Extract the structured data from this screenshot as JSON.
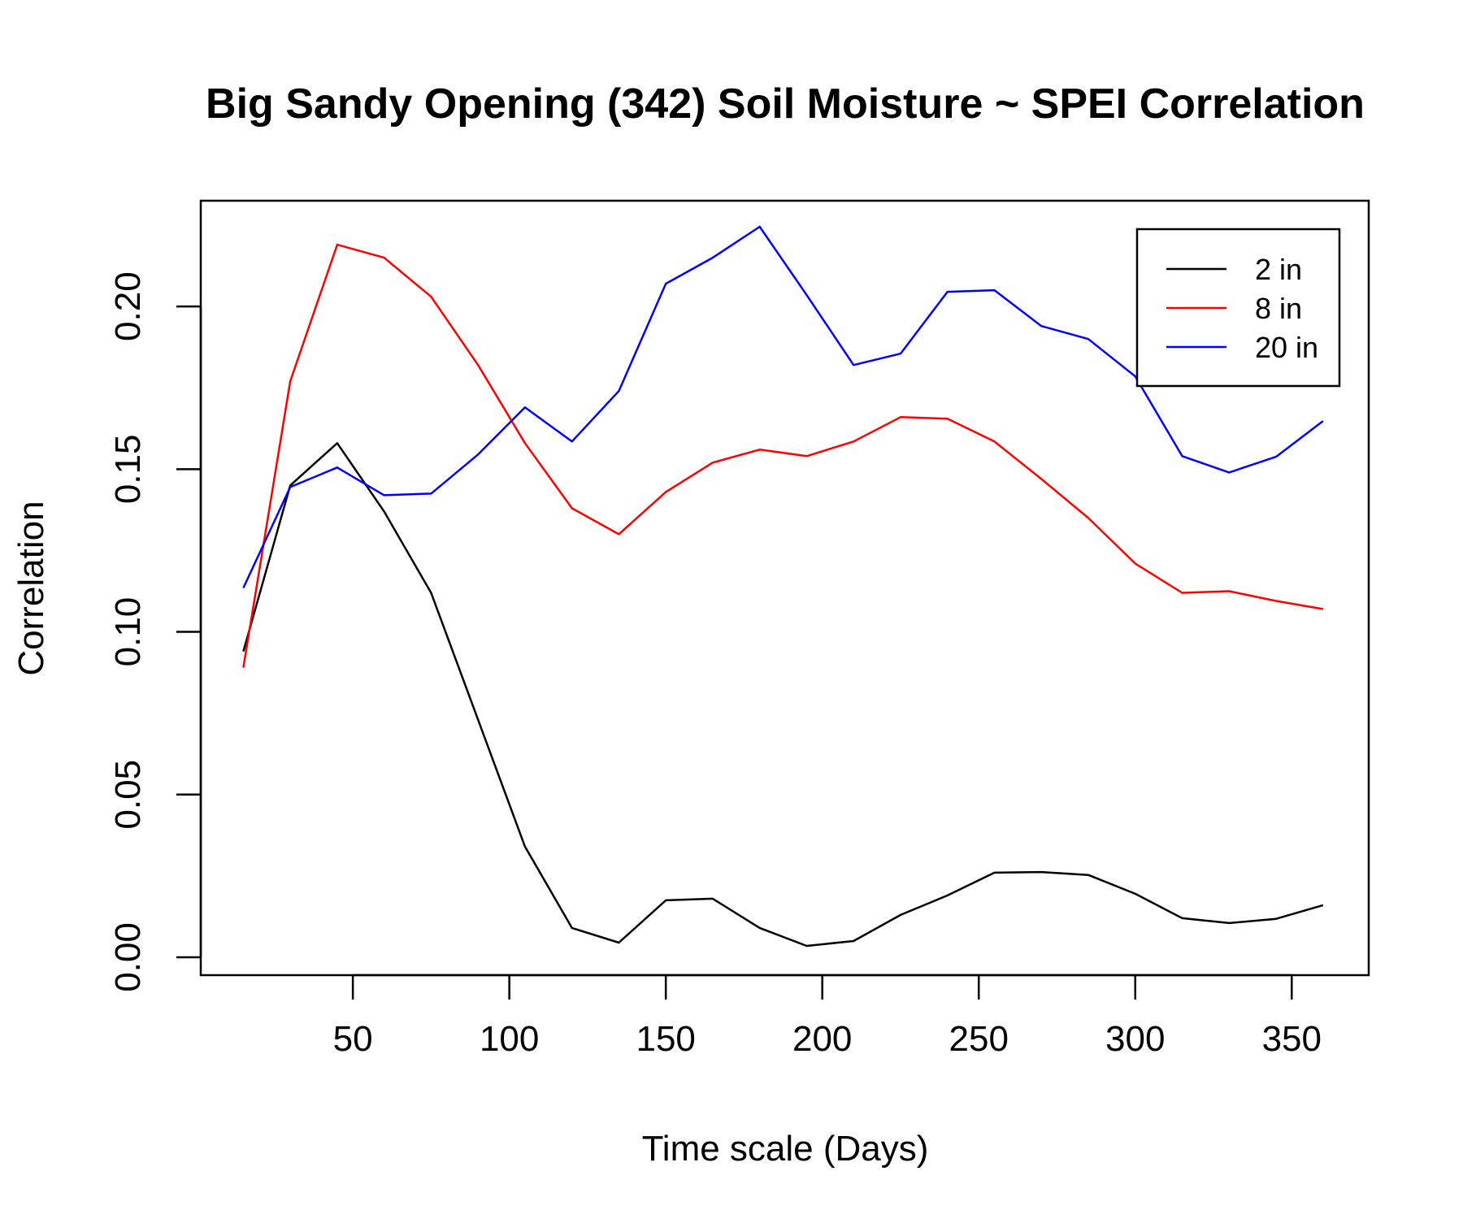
{
  "chart_data": {
    "type": "line",
    "title": "Big Sandy Opening (342) Soil Moisture ~ SPEI Correlation",
    "xlabel": "Time scale (Days)",
    "ylabel": "Correlation",
    "xlim": [
      1.4,
      374.6
    ],
    "ylim": [
      -0.0055,
      0.2325
    ],
    "xticks": [
      50,
      100,
      150,
      200,
      250,
      300,
      350
    ],
    "xtick_labels": [
      "50",
      "100",
      "150",
      "200",
      "250",
      "300",
      "350"
    ],
    "yticks": [
      0.0,
      0.05,
      0.1,
      0.15,
      0.2
    ],
    "ytick_labels": [
      "0.00",
      "0.05",
      "0.10",
      "0.15",
      "0.20"
    ],
    "grid": false,
    "legend_position": "top-right",
    "x": [
      15,
      30,
      45,
      60,
      75,
      90,
      105,
      120,
      135,
      150,
      165,
      180,
      195,
      210,
      225,
      240,
      255,
      270,
      285,
      300,
      315,
      330,
      345,
      360
    ],
    "series": [
      {
        "name": "2 in",
        "color": "#000000",
        "values": [
          0.094,
          0.145,
          0.158,
          0.137,
          0.112,
          0.073,
          0.034,
          0.009,
          0.0045,
          0.0175,
          0.018,
          0.009,
          0.0035,
          0.005,
          0.013,
          0.019,
          0.026,
          0.0262,
          0.0253,
          0.0195,
          0.012,
          0.0105,
          0.0118,
          0.016
        ]
      },
      {
        "name": "8 in",
        "color": "#ff0000",
        "values": [
          0.089,
          0.177,
          0.219,
          0.215,
          0.203,
          0.182,
          0.158,
          0.138,
          0.13,
          0.143,
          0.152,
          0.156,
          0.154,
          0.1585,
          0.166,
          0.1655,
          0.1585,
          0.147,
          0.135,
          0.121,
          0.112,
          0.1125,
          0.1095,
          0.107
        ]
      },
      {
        "name": "20 in",
        "color": "#0000ff",
        "values": [
          0.1135,
          0.1445,
          0.1505,
          0.142,
          0.1425,
          0.1545,
          0.169,
          0.1585,
          0.174,
          0.207,
          0.215,
          0.2245,
          0.2035,
          0.182,
          0.1855,
          0.2045,
          0.205,
          0.194,
          0.19,
          0.1785,
          0.154,
          0.149,
          0.1538,
          0.1648
        ]
      }
    ]
  }
}
